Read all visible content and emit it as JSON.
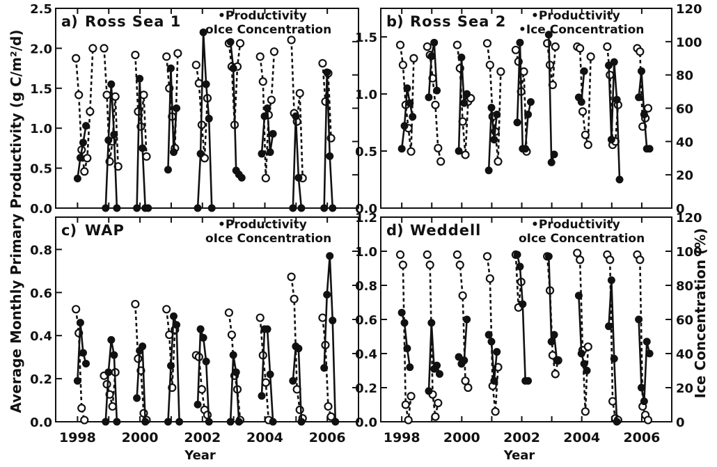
{
  "figure": {
    "y_label_left": "Average Monthly Primary Productivity (g C/m²/d)",
    "y_label_right": "Ice Concentration (%)",
    "x_label": "Year"
  },
  "chart_data": [
    {
      "type": "line",
      "panel_label": "a)",
      "title": "Ross Sea 1",
      "legend": [
        "•Productivity",
        "oIce Concentration"
      ],
      "legend_placement": "top-right",
      "xlabel": "",
      "ylabel_left": "",
      "ylabel_right": "",
      "xlim": [
        1997.3,
        2007.0
      ],
      "ylim_left": [
        0,
        2.5
      ],
      "ylim_right": [
        0,
        120
      ],
      "left_ticks": [
        "0.0",
        "0.5",
        "1.0",
        "1.5",
        "2.0",
        "2.5"
      ],
      "right_ticks": [],
      "x_ticks": [],
      "seasons": [
        {
          "start": 1997.95,
          "prod": [
            0.37,
            0.63,
            0.82,
            1.03
          ],
          "ice": [
            90,
            68,
            35,
            22,
            30,
            58,
            96
          ]
        },
        {
          "start": 1998.85,
          "prod": [
            0.0,
            0.85,
            1.55,
            0.92,
            0.0
          ],
          "ice": [
            96,
            68,
            28,
            40,
            67,
            25
          ]
        },
        {
          "start": 1999.85,
          "prod": [
            0.0,
            1.62,
            0.75,
            0.0,
            0.0
          ],
          "ice": [
            92,
            58,
            49,
            68,
            31
          ]
        },
        {
          "start": 2000.85,
          "prod": [
            0.48,
            1.75,
            0.7,
            1.25
          ],
          "ice": [
            91,
            72,
            55,
            36,
            93
          ]
        },
        {
          "start": 2001.8,
          "prod": [
            0.0,
            0.68,
            2.2,
            1.55,
            1.12,
            0.0
          ],
          "ice": [
            86,
            75,
            50,
            30,
            66
          ]
        },
        {
          "start": 2002.85,
          "prod": [
            2.08,
            1.75,
            0.47,
            0.42,
            0.38
          ],
          "ice": [
            99,
            85,
            50,
            85,
            99
          ]
        },
        {
          "start": 2003.85,
          "prod": [
            0.68,
            1.15,
            1.25,
            0.7,
            0.93
          ],
          "ice": [
            91,
            76,
            18,
            56,
            65,
            94
          ]
        },
        {
          "start": 2004.85,
          "prod": [
            0.0,
            1.15,
            0.38,
            0.0
          ],
          "ice": [
            101,
            57,
            52,
            69,
            18
          ]
        },
        {
          "start": 2005.85,
          "prod": [
            0.0,
            1.7,
            0.65,
            0.0
          ],
          "ice": [
            87,
            64,
            81,
            42
          ]
        }
      ]
    },
    {
      "type": "line",
      "panel_label": "b)",
      "title": "Ross Sea 2",
      "legend": [
        "•Productivity",
        "•Ice Concentration"
      ],
      "legend_placement": "top-right",
      "xlabel": "",
      "ylabel_left": "",
      "ylabel_right": "",
      "xlim": [
        1997.3,
        2007.0
      ],
      "ylim_left": [
        0,
        1.75
      ],
      "ylim_right": [
        0,
        120
      ],
      "left_ticks": [
        "0.0",
        "0.5",
        "1.0",
        "1.5"
      ],
      "right_ticks": [
        "0",
        "20",
        "40",
        "60",
        "80",
        "100",
        "120"
      ],
      "x_ticks": [],
      "seasons": [
        {
          "start": 1997.95,
          "prod": [
            0.52,
            0.72,
            1.05,
            0.92,
            0.8
          ],
          "ice": [
            98,
            86,
            62,
            48,
            34,
            90
          ]
        },
        {
          "start": 1998.85,
          "prod": [
            0.97,
            1.33,
            1.45,
            1.03
          ],
          "ice": [
            97,
            92,
            78,
            62,
            36,
            28
          ]
        },
        {
          "start": 1999.85,
          "prod": [
            0.5,
            1.32,
            0.92,
            1.0
          ],
          "ice": [
            98,
            84,
            52,
            32,
            64,
            66
          ]
        },
        {
          "start": 2000.85,
          "prod": [
            0.33,
            0.88,
            0.6,
            0.82
          ],
          "ice": [
            99,
            86,
            55,
            46,
            28,
            82
          ]
        },
        {
          "start": 2001.8,
          "prod": [
            0.75,
            1.45,
            0.52,
            0.52,
            0.82,
            0.93
          ],
          "ice": [
            95,
            88,
            70,
            82,
            34
          ]
        },
        {
          "start": 2002.85,
          "prod": [
            1.52,
            0.4,
            0.47
          ],
          "ice": [
            99,
            86,
            74,
            97
          ]
        },
        {
          "start": 2003.85,
          "prod": [
            0.97,
            0.93,
            1.2
          ],
          "ice": [
            97,
            96,
            58,
            44,
            38,
            91
          ]
        },
        {
          "start": 2004.85,
          "prod": [
            1.25,
            0.6,
            1.28,
            0.95,
            0.25
          ],
          "ice": [
            97,
            80,
            38,
            40,
            62
          ]
        },
        {
          "start": 2005.85,
          "prod": [
            0.97,
            1.2,
            0.82,
            0.52,
            0.52
          ],
          "ice": [
            96,
            94,
            49,
            54,
            60
          ]
        }
      ]
    },
    {
      "type": "line",
      "panel_label": "c)",
      "title": "WAP",
      "legend": [
        "•Productivity",
        "oIce Concentration"
      ],
      "legend_placement": "top-right",
      "xlabel": "Year",
      "ylabel_left": "",
      "ylabel_right": "",
      "xlim": [
        1997.3,
        2007.0
      ],
      "ylim_left": [
        0,
        0.95
      ],
      "ylim_right": [
        0,
        120
      ],
      "left_ticks": [
        "0.0",
        "0.2",
        "0.4",
        "0.6",
        "0.8"
      ],
      "right_ticks": [],
      "x_ticks": [
        "1998",
        "2000",
        "2002",
        "2004",
        "2006"
      ],
      "seasons": [
        {
          "start": 1997.95,
          "prod": [
            0.19,
            0.46,
            0.32,
            0.27
          ],
          "ice": [
            66,
            52,
            8,
            1
          ]
        },
        {
          "start": 1998.85,
          "prod": [
            0.0,
            0.23,
            0.38,
            0.31,
            0.0
          ],
          "ice": [
            27,
            22,
            16,
            9,
            29
          ]
        },
        {
          "start": 1999.85,
          "prod": [
            0.11,
            0.33,
            0.35,
            0.0
          ],
          "ice": [
            69,
            37,
            30,
            5,
            1
          ]
        },
        {
          "start": 2000.85,
          "prod": [
            0.0,
            0.26,
            0.49,
            0.45,
            0.0
          ],
          "ice": [
            66,
            51,
            20,
            54
          ]
        },
        {
          "start": 2001.8,
          "prod": [
            0.08,
            0.43,
            0.39,
            0.28,
            0.0
          ],
          "ice": [
            39,
            38,
            19,
            7,
            4
          ]
        },
        {
          "start": 2002.85,
          "prod": [
            0.0,
            0.31,
            0.23,
            0.0
          ],
          "ice": [
            64,
            51,
            27,
            19,
            1
          ]
        },
        {
          "start": 2003.85,
          "prod": [
            0.12,
            0.43,
            0.43,
            0.22,
            0.0
          ],
          "ice": [
            61,
            39,
            23,
            1
          ]
        },
        {
          "start": 2004.85,
          "prod": [
            0.19,
            0.35,
            0.34,
            0.0
          ],
          "ice": [
            85,
            72,
            19,
            7,
            2
          ]
        },
        {
          "start": 2005.85,
          "prod": [
            0.25,
            0.59,
            0.77,
            0.47,
            0.0
          ],
          "ice": [
            61,
            45,
            9,
            3
          ]
        }
      ]
    },
    {
      "type": "line",
      "panel_label": "d)",
      "title": "Weddell",
      "legend": [
        "•Productivity",
        "oIce Concentration"
      ],
      "legend_placement": "top-right",
      "xlabel": "Year",
      "ylabel_left": "",
      "ylabel_right": "",
      "xlim": [
        1997.3,
        2007.0
      ],
      "ylim_left": [
        0,
        1.2
      ],
      "ylim_right": [
        0,
        120
      ],
      "left_ticks": [
        "0.0",
        "0.2",
        "0.4",
        "0.6",
        "0.8",
        "1.0",
        "1.2"
      ],
      "right_ticks": [
        "0",
        "20",
        "40",
        "60",
        "80",
        "100",
        "120"
      ],
      "x_ticks": [
        "1998",
        "2000",
        "2002",
        "2004",
        "2006"
      ],
      "seasons": [
        {
          "start": 1997.95,
          "prod": [
            0.64,
            0.58,
            0.43,
            0.32
          ],
          "ice": [
            98,
            92,
            10,
            1,
            15
          ]
        },
        {
          "start": 1998.85,
          "prod": [
            0.18,
            0.58,
            0.31,
            0.33,
            0.28
          ],
          "ice": [
            98,
            92,
            16,
            3,
            11
          ]
        },
        {
          "start": 1999.85,
          "prod": [
            0.38,
            0.34,
            0.36,
            0.6
          ],
          "ice": [
            98,
            92,
            74,
            24,
            20
          ]
        },
        {
          "start": 2000.85,
          "prod": [
            0.51,
            0.47,
            0.24,
            0.41
          ],
          "ice": [
            97,
            84,
            21,
            6,
            32
          ]
        },
        {
          "start": 2001.8,
          "prod": [
            0.98,
            0.91,
            0.69,
            0.24,
            0.24
          ],
          "ice": [
            98,
            67,
            82
          ]
        },
        {
          "start": 2002.85,
          "prod": [
            0.97,
            0.47,
            0.51,
            0.36
          ],
          "ice": [
            97,
            77,
            39,
            28,
            36
          ]
        },
        {
          "start": 2003.85,
          "prod": [
            0.74,
            0.4,
            0.34,
            0.3
          ],
          "ice": [
            99,
            95,
            42,
            6,
            44
          ]
        },
        {
          "start": 2004.85,
          "prod": [
            0.56,
            0.83,
            0.37,
            0.0
          ],
          "ice": [
            98,
            95,
            12,
            2,
            1
          ]
        },
        {
          "start": 2005.85,
          "prod": [
            0.6,
            0.2,
            0.12,
            0.47,
            0.4
          ],
          "ice": [
            98,
            95,
            9,
            4,
            1
          ]
        }
      ]
    }
  ]
}
